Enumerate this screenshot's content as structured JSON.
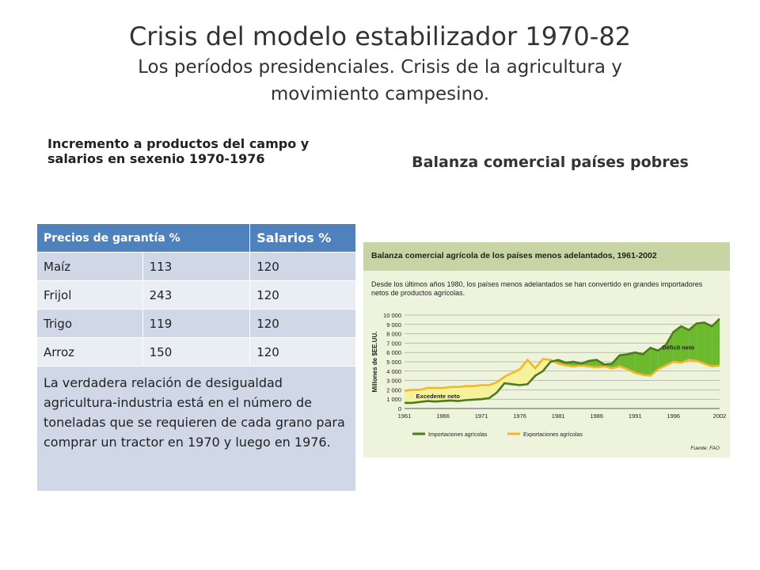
{
  "slide": {
    "title": "Crisis del modelo estabilizador 1970-82",
    "subtitle_line1": "Los períodos presidenciales. Crisis de la agricultura y",
    "subtitle_line2": "movimiento campesino.",
    "left_heading_line1": "Incremento a productos del campo y",
    "left_heading_line2": "salarios en sexenio 1970-1976",
    "right_heading": "Balanza comercial países pobres"
  },
  "table": {
    "header": [
      "Precios de garantía %",
      "",
      "Salarios %"
    ],
    "rows": [
      {
        "product": "Maíz",
        "price": "113",
        "salary": "120"
      },
      {
        "product": "Frijol",
        "price": "243",
        "salary": "120"
      },
      {
        "product": "Trigo",
        "price": "119",
        "salary": "120"
      },
      {
        "product": "Arroz",
        "price": "150",
        "salary": "120"
      }
    ],
    "note": "La verdadera relación de desigualdad agricultura-industria está en el número de toneladas que se requieren de cada grano para comprar un tractor en 1970 y luego en 1976."
  },
  "chart_data": {
    "type": "line",
    "title": "Balanza comercial agrícola de los países menos adelantados, 1961-2002",
    "subtitle": "Desde los últimos años 1980, los países menos adelantados se han convertido en grandes importadores netos de productos agrícolas.",
    "ylabel": "Millones de $EE.UU.",
    "xlabel": "",
    "x_ticks": [
      "1961",
      "1966",
      "1971",
      "1976",
      "1981",
      "1986",
      "1991",
      "1996",
      "2002"
    ],
    "y_ticks": [
      "0",
      "1 000",
      "2 000",
      "3 000",
      "4 000",
      "5 000",
      "6 000",
      "7 000",
      "8 000",
      "9 000",
      "10 000"
    ],
    "xlim": [
      1961,
      2002
    ],
    "ylim": [
      0,
      10000
    ],
    "annotations": [
      "Déficit neto",
      "Excedente neto"
    ],
    "source": "Fuente: FAO",
    "colors": {
      "imports": "#4d7a1e",
      "exports": "#f2b82b",
      "deficit": "#6cb82e",
      "surplus": "#f4f29a"
    },
    "series": [
      {
        "name": "Importaciones agrícolas",
        "x": [
          1961,
          1962,
          1963,
          1964,
          1965,
          1966,
          1967,
          1968,
          1969,
          1970,
          1971,
          1972,
          1973,
          1974,
          1975,
          1976,
          1977,
          1978,
          1979,
          1980,
          1981,
          1982,
          1983,
          1984,
          1985,
          1986,
          1987,
          1988,
          1989,
          1990,
          1991,
          1992,
          1993,
          1994,
          1995,
          1996,
          1997,
          1998,
          1999,
          2000,
          2001,
          2002
        ],
        "values": [
          600,
          600,
          700,
          800,
          750,
          800,
          850,
          800,
          900,
          950,
          1000,
          1100,
          1700,
          2700,
          2600,
          2500,
          2600,
          3500,
          4000,
          5000,
          5200,
          4900,
          5000,
          4800,
          5100,
          5200,
          4700,
          4800,
          5700,
          5800,
          6000,
          5800,
          6500,
          6200,
          6800,
          8200,
          8800,
          8400,
          9100,
          9200,
          8800,
          9600
        ]
      },
      {
        "name": "Exportaciones agrícolas",
        "x": [
          1961,
          1962,
          1963,
          1964,
          1965,
          1966,
          1967,
          1968,
          1969,
          1970,
          1971,
          1972,
          1973,
          1974,
          1975,
          1976,
          1977,
          1978,
          1979,
          1980,
          1981,
          1982,
          1983,
          1984,
          1985,
          1986,
          1987,
          1988,
          1989,
          1990,
          1991,
          1992,
          1993,
          1994,
          1995,
          1996,
          1997,
          1998,
          1999,
          2000,
          2001,
          2002
        ],
        "values": [
          1900,
          2000,
          2000,
          2200,
          2200,
          2200,
          2300,
          2300,
          2400,
          2400,
          2500,
          2500,
          2800,
          3400,
          3800,
          4200,
          5200,
          4300,
          5300,
          5200,
          4800,
          4600,
          4500,
          4600,
          4500,
          4400,
          4500,
          4300,
          4500,
          4200,
          3800,
          3600,
          3500,
          4200,
          4600,
          5000,
          4900,
          5200,
          5100,
          4800,
          4500,
          4600
        ]
      }
    ]
  }
}
